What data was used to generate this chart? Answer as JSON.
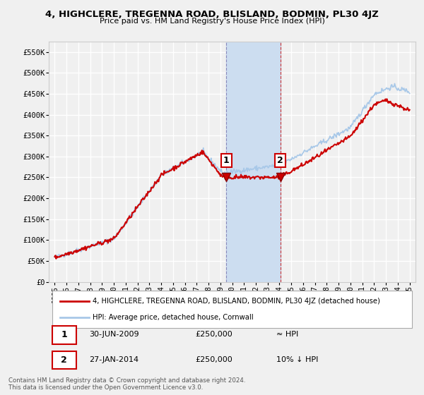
{
  "title": "4, HIGHCLERE, TREGENNA ROAD, BLISLAND, BODMIN, PL30 4JZ",
  "subtitle": "Price paid vs. HM Land Registry's House Price Index (HPI)",
  "ylabel_ticks": [
    "£0",
    "£50K",
    "£100K",
    "£150K",
    "£200K",
    "£250K",
    "£300K",
    "£350K",
    "£400K",
    "£450K",
    "£500K",
    "£550K"
  ],
  "ytick_values": [
    0,
    50000,
    100000,
    150000,
    200000,
    250000,
    300000,
    350000,
    400000,
    450000,
    500000,
    550000
  ],
  "ylim": [
    0,
    575000
  ],
  "xlim_start": 1994.5,
  "xlim_end": 2025.5,
  "xticks": [
    1995,
    1996,
    1997,
    1998,
    1999,
    2000,
    2001,
    2002,
    2003,
    2004,
    2005,
    2006,
    2007,
    2008,
    2009,
    2010,
    2011,
    2012,
    2013,
    2014,
    2015,
    2016,
    2017,
    2018,
    2019,
    2020,
    2021,
    2022,
    2023,
    2024,
    2025
  ],
  "sale1_x": 2009.5,
  "sale1_y": 250000,
  "sale2_x": 2014.07,
  "sale2_y": 250000,
  "annotation1": [
    "1",
    "30-JUN-2009",
    "£250,000",
    "≈ HPI"
  ],
  "annotation2": [
    "2",
    "27-JAN-2014",
    "£250,000",
    "10% ↓ HPI"
  ],
  "legend_line1": "4, HIGHCLERE, TREGENNA ROAD, BLISLAND, BODMIN, PL30 4JZ (detached house)",
  "legend_line2": "HPI: Average price, detached house, Cornwall",
  "footer": "Contains HM Land Registry data © Crown copyright and database right 2024.\nThis data is licensed under the Open Government Licence v3.0.",
  "hpi_color": "#a8c8e8",
  "sale_color": "#cc0000",
  "shade_color": "#ccddf0",
  "bg_color": "#f0f0f0",
  "grid_color": "#ffffff"
}
